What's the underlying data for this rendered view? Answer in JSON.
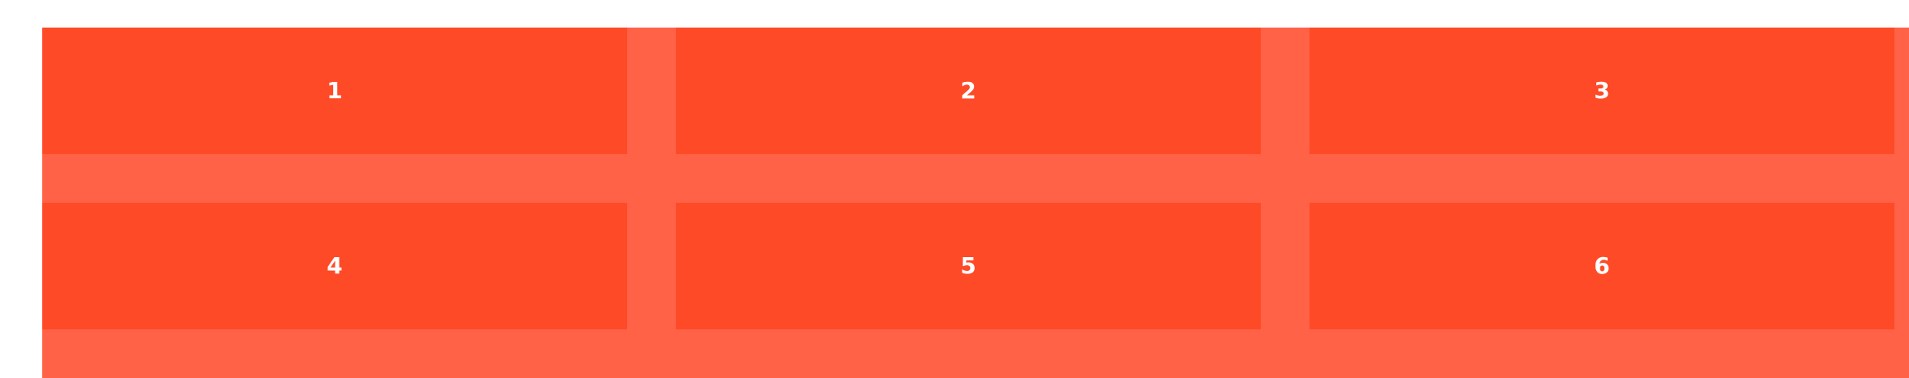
{
  "colors": {
    "page_background": "#ffffff",
    "grid_background": "#ff6247",
    "cell_background": "#ff4a27",
    "cell_text": "#ffffff"
  },
  "cells": [
    {
      "label": "1"
    },
    {
      "label": "2"
    },
    {
      "label": "3"
    },
    {
      "label": "4"
    },
    {
      "label": "5"
    },
    {
      "label": "6"
    }
  ]
}
